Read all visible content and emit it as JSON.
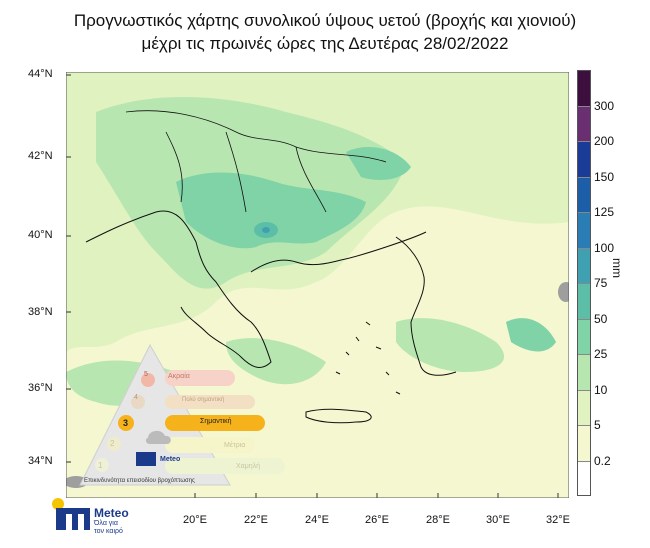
{
  "title": {
    "line1": "Προγνωστικός χάρτης συνολικού ύψους υετού (βροχής και χιονιού)",
    "line2": "μέχρι τις πρωινές ώρες της Δευτέρας 28/02/2022"
  },
  "axes": {
    "lat_labels": [
      "44°N",
      "42°N",
      "40°N",
      "38°N",
      "36°N",
      "34°N"
    ],
    "lon_labels": [
      "20°E",
      "22°E",
      "24°E",
      "26°E",
      "28°E",
      "30°E",
      "32°E"
    ]
  },
  "colorbar": {
    "unit": "mm",
    "levels": [
      "0.2",
      "5",
      "10",
      "25",
      "50",
      "75",
      "100",
      "125",
      "150",
      "200",
      "300"
    ],
    "colors": [
      "#ffffff",
      "#f4f7cf",
      "#dff2c0",
      "#b7e6b1",
      "#7fd3a6",
      "#5cbea6",
      "#3fa0b2",
      "#2b7db5",
      "#1d5ea9",
      "#1a3c97",
      "#6a2f70",
      "#3c0f3f"
    ]
  },
  "legend": {
    "levels": [
      {
        "n": "5",
        "label": "Ακραία"
      },
      {
        "n": "4",
        "label": "Πολύ σημαντική"
      },
      {
        "n": "3",
        "label": "Σημαντική"
      },
      {
        "n": "2",
        "label": "Μέτρια"
      },
      {
        "n": "1",
        "label": "Χαμηλή"
      }
    ],
    "caption": "Επικινδυνότητα επεισοδίου βροχόπτωσης",
    "brand": "Meteo"
  },
  "logo": {
    "name": "Meteo",
    "tagline1": "Όλα για",
    "tagline2": "τον καιρό"
  }
}
